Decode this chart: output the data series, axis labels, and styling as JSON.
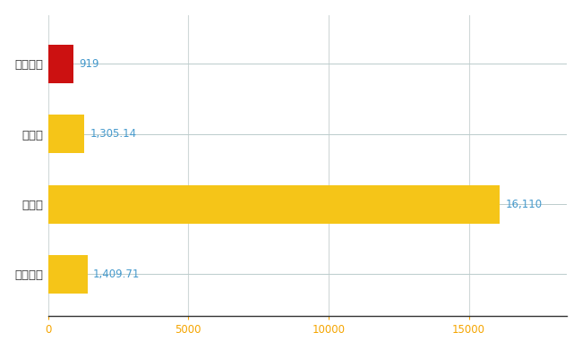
{
  "categories": [
    "上天草市",
    "県平均",
    "県最大",
    "全国平均"
  ],
  "values": [
    919,
    1305.14,
    16110,
    1409.71
  ],
  "bar_colors": [
    "#cc1111",
    "#f5c518",
    "#f5c518",
    "#f5c518"
  ],
  "label_texts": [
    "919",
    "1,305.14",
    "16,110",
    "1,409.71"
  ],
  "label_color": "#4499cc",
  "value_line_color": "#bbcccc",
  "xtick_color": "#f5a500",
  "xlabel": "",
  "ylabel": "",
  "xlim": [
    0,
    18500
  ],
  "xticks": [
    0,
    5000,
    10000,
    15000
  ],
  "background_color": "#ffffff",
  "grid_color": "#d0d8d8",
  "bar_height": 0.55,
  "label_fontsize": 8.5,
  "tick_fontsize": 8.5,
  "ytick_fontsize": 9.5
}
